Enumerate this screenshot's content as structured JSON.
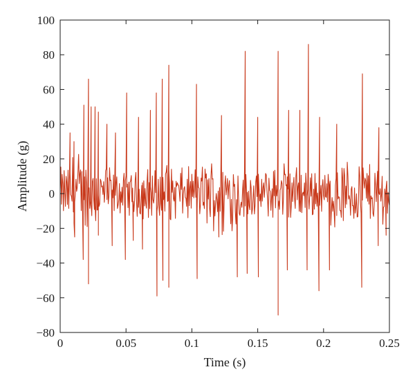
{
  "chart_data": {
    "type": "line",
    "title": "",
    "xlabel": "Time (s)",
    "ylabel": "Amplitude (g)",
    "xlim": [
      0,
      0.25
    ],
    "ylim": [
      -80,
      100
    ],
    "x_ticks": [
      0,
      0.05,
      0.1,
      0.15,
      0.2,
      0.25
    ],
    "x_tick_labels": [
      "0",
      "0.05",
      "0.1",
      "0.15",
      "0.2",
      "0.25"
    ],
    "y_ticks": [
      -80,
      -60,
      -40,
      -20,
      0,
      20,
      40,
      60,
      80,
      100
    ],
    "y_tick_labels": [
      "−80",
      "−60",
      "−40",
      "−20",
      "0",
      "20",
      "40",
      "60",
      "80",
      "100"
    ],
    "grid": false,
    "legend": "none",
    "series": [
      {
        "color": "#c8381a",
        "sample_interval": 0.0005,
        "noise_band": [
          -14,
          14
        ],
        "peaks": [
          [
            0.0075,
            35
          ],
          [
            0.0105,
            30
          ],
          [
            0.018,
            51
          ],
          [
            0.0215,
            66
          ],
          [
            0.0235,
            50
          ],
          [
            0.0265,
            50
          ],
          [
            0.029,
            47
          ],
          [
            0.0355,
            40
          ],
          [
            0.042,
            35
          ],
          [
            0.0505,
            58
          ],
          [
            0.0595,
            44
          ],
          [
            0.0685,
            48
          ],
          [
            0.073,
            58
          ],
          [
            0.0775,
            66
          ],
          [
            0.0825,
            74
          ],
          [
            0.1035,
            63
          ],
          [
            0.1225,
            45
          ],
          [
            0.1405,
            82
          ],
          [
            0.15,
            44
          ],
          [
            0.1655,
            82
          ],
          [
            0.1735,
            48
          ],
          [
            0.182,
            48
          ],
          [
            0.1885,
            86
          ],
          [
            0.197,
            44
          ],
          [
            0.2295,
            69
          ],
          [
            0.21,
            40
          ],
          [
            0.242,
            38
          ]
        ],
        "troughs": [
          [
            0.011,
            -25
          ],
          [
            0.0175,
            -38
          ],
          [
            0.0215,
            -52
          ],
          [
            0.029,
            -24
          ],
          [
            0.0395,
            -30
          ],
          [
            0.0495,
            -38
          ],
          [
            0.0555,
            -27
          ],
          [
            0.0625,
            -32
          ],
          [
            0.0735,
            -59
          ],
          [
            0.078,
            -50
          ],
          [
            0.0825,
            -54
          ],
          [
            0.104,
            -49
          ],
          [
            0.1205,
            -25
          ],
          [
            0.1345,
            -48
          ],
          [
            0.142,
            -46
          ],
          [
            0.1505,
            -48
          ],
          [
            0.1655,
            -70
          ],
          [
            0.1725,
            -44
          ],
          [
            0.1875,
            -44
          ],
          [
            0.1965,
            -56
          ],
          [
            0.2045,
            -44
          ],
          [
            0.229,
            -54
          ],
          [
            0.2415,
            -30
          ],
          [
            0.2475,
            -24
          ]
        ]
      }
    ]
  }
}
